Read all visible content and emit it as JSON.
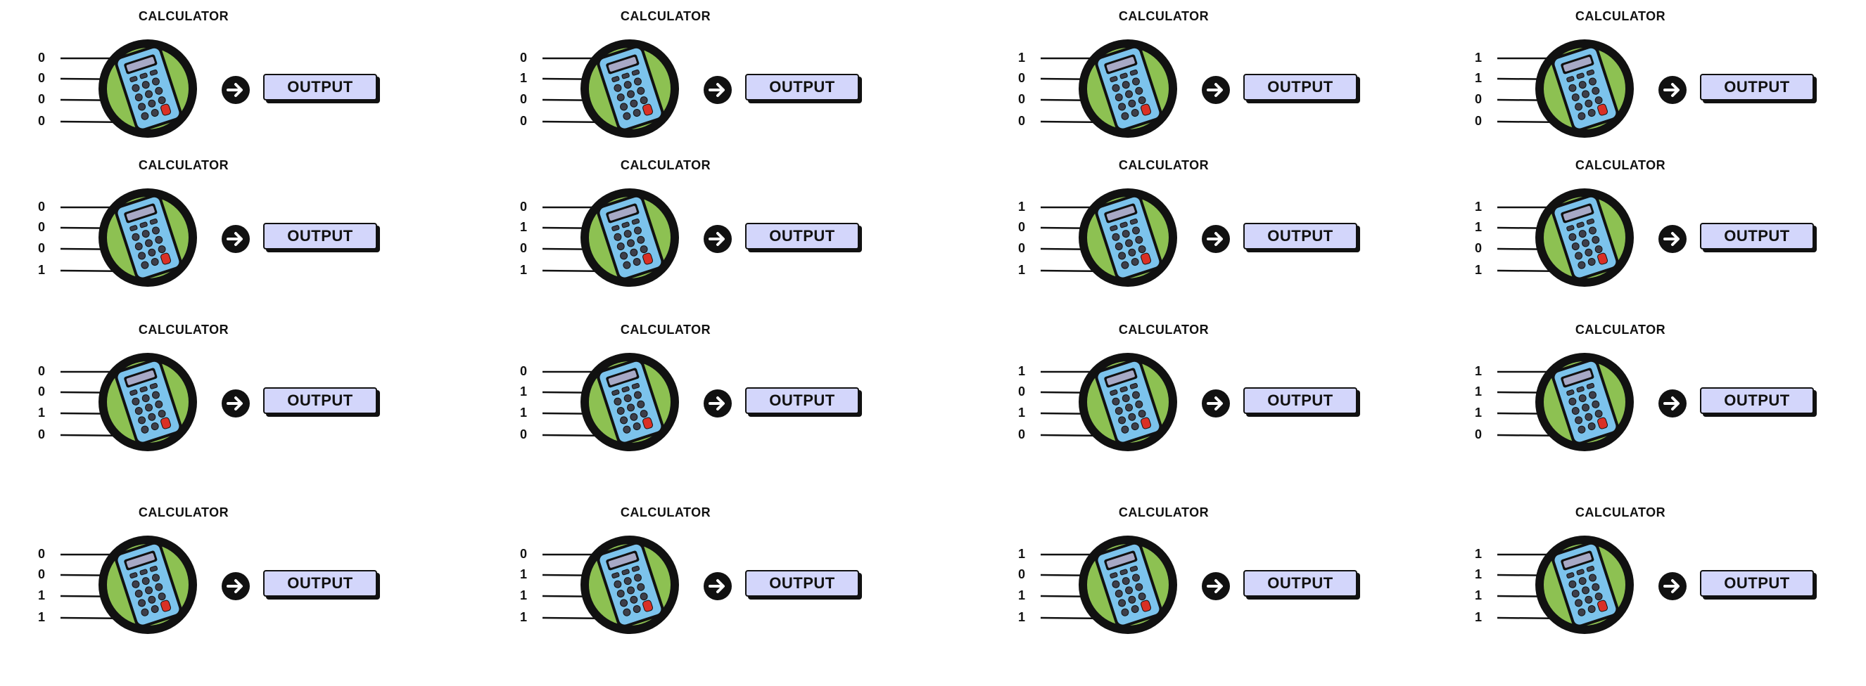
{
  "colors": {
    "background": "#ffffff",
    "calculator_ring": "#111111",
    "calculator_disk": "#8dc152",
    "calculator_body": "#7cc3ec",
    "calculator_red_key": "#d93025",
    "output_fill": "#d3d6fb"
  },
  "icons": {
    "calculator": "calculator-icon",
    "arrow": "arrow-right-circle-icon"
  },
  "units": [
    {
      "title": "CALCULATOR",
      "inputs": [
        "0",
        "0",
        "0",
        "0"
      ],
      "output_label": "OUTPUT"
    },
    {
      "title": "CALCULATOR",
      "inputs": [
        "0",
        "1",
        "0",
        "0"
      ],
      "output_label": "OUTPUT"
    },
    {
      "title": "CALCULATOR",
      "inputs": [
        "1",
        "0",
        "0",
        "0"
      ],
      "output_label": "OUTPUT"
    },
    {
      "title": "CALCULATOR",
      "inputs": [
        "1",
        "1",
        "0",
        "0"
      ],
      "output_label": "OUTPUT"
    },
    {
      "title": "CALCULATOR",
      "inputs": [
        "0",
        "0",
        "0",
        "1"
      ],
      "output_label": "OUTPUT"
    },
    {
      "title": "CALCULATOR",
      "inputs": [
        "0",
        "1",
        "0",
        "1"
      ],
      "output_label": "OUTPUT"
    },
    {
      "title": "CALCULATOR",
      "inputs": [
        "1",
        "0",
        "0",
        "1"
      ],
      "output_label": "OUTPUT"
    },
    {
      "title": "CALCULATOR",
      "inputs": [
        "1",
        "1",
        "0",
        "1"
      ],
      "output_label": "OUTPUT"
    },
    {
      "title": "CALCULATOR",
      "inputs": [
        "0",
        "0",
        "1",
        "0"
      ],
      "output_label": "OUTPUT"
    },
    {
      "title": "CALCULATOR",
      "inputs": [
        "0",
        "1",
        "1",
        "0"
      ],
      "output_label": "OUTPUT"
    },
    {
      "title": "CALCULATOR",
      "inputs": [
        "1",
        "0",
        "1",
        "0"
      ],
      "output_label": "OUTPUT"
    },
    {
      "title": "CALCULATOR",
      "inputs": [
        "1",
        "1",
        "1",
        "0"
      ],
      "output_label": "OUTPUT"
    },
    {
      "title": "CALCULATOR",
      "inputs": [
        "0",
        "0",
        "1",
        "1"
      ],
      "output_label": "OUTPUT"
    },
    {
      "title": "CALCULATOR",
      "inputs": [
        "0",
        "1",
        "1",
        "1"
      ],
      "output_label": "OUTPUT"
    },
    {
      "title": "CALCULATOR",
      "inputs": [
        "1",
        "0",
        "1",
        "1"
      ],
      "output_label": "OUTPUT"
    },
    {
      "title": "CALCULATOR",
      "inputs": [
        "1",
        "1",
        "1",
        "1"
      ],
      "output_label": "OUTPUT"
    }
  ]
}
